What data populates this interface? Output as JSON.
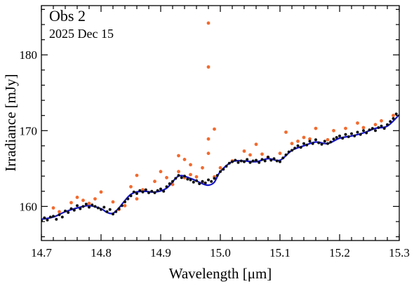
{
  "chart_data": {
    "type": "scatter",
    "title": "Obs 2",
    "subtitle": "2025 Dec 15",
    "xlabel": "Wavelength [μm]",
    "ylabel": "Irradiance [mJy]",
    "xlim": [
      14.7,
      15.3
    ],
    "ylim": [
      155.5,
      186.5
    ],
    "x_ticks": [
      14.7,
      14.8,
      14.9,
      15.0,
      15.1,
      15.2,
      15.3
    ],
    "x_tick_labels": [
      "14.7",
      "14.8",
      "14.9",
      "15.0",
      "15.1",
      "15.2",
      "15.3"
    ],
    "y_ticks": [
      160,
      170,
      180
    ],
    "y_tick_labels": [
      "160",
      "170",
      "180"
    ],
    "grid": false,
    "colors": {
      "raw": "#f26a2e",
      "clean": "#111111",
      "model": "#1515c8"
    },
    "model_knots": {
      "x": [
        14.7,
        14.72,
        14.74,
        14.76,
        14.78,
        14.8,
        14.81,
        14.82,
        14.83,
        14.85,
        14.87,
        14.89,
        14.91,
        14.93,
        14.95,
        14.97,
        14.98,
        14.99,
        15.0,
        15.02,
        15.04,
        15.06,
        15.08,
        15.1,
        15.12,
        15.14,
        15.16,
        15.18,
        15.2,
        15.22,
        15.24,
        15.26,
        15.28,
        15.3
      ],
      "y": [
        158.3,
        158.6,
        159.3,
        159.8,
        160.1,
        159.7,
        159.2,
        159.1,
        159.8,
        161.6,
        162.0,
        161.9,
        162.4,
        164.0,
        163.7,
        163.0,
        162.8,
        163.2,
        164.6,
        165.9,
        166.0,
        165.9,
        166.3,
        166.1,
        167.4,
        168.0,
        168.5,
        168.3,
        169.0,
        169.3,
        169.7,
        170.3,
        170.6,
        172.1
      ]
    },
    "series": [
      {
        "role": "raw",
        "x": [
          14.72,
          14.73,
          14.75,
          14.76,
          14.77,
          14.78,
          14.79,
          14.8,
          14.82,
          14.83,
          14.84,
          14.85,
          14.86,
          14.86,
          14.87,
          14.89,
          14.9,
          14.91,
          14.92,
          14.93,
          14.93,
          14.94,
          14.94,
          14.95,
          14.95,
          14.96,
          14.97,
          14.97,
          14.98,
          14.98,
          14.98,
          14.98,
          14.99,
          14.99,
          15.0,
          15.02,
          15.04,
          15.05,
          15.06,
          15.07,
          15.08,
          15.1,
          15.11,
          15.12,
          15.13,
          15.14,
          15.15,
          15.16,
          15.18,
          15.19,
          15.21,
          15.23,
          15.24,
          15.26,
          15.27,
          15.29
        ],
        "y": [
          159.8,
          159.3,
          160.5,
          161.2,
          160.8,
          160.4,
          161.0,
          161.9,
          160.6,
          159.6,
          160.1,
          162.6,
          164.1,
          161.0,
          162.2,
          163.3,
          164.6,
          163.8,
          162.9,
          166.7,
          164.6,
          166.2,
          163.8,
          165.5,
          164.2,
          163.9,
          165.1,
          163.2,
          184.2,
          178.4,
          168.9,
          167.0,
          170.2,
          163.9,
          165.1,
          166.0,
          167.3,
          166.8,
          168.2,
          166.9,
          166.5,
          167.0,
          169.8,
          168.3,
          168.6,
          169.1,
          168.9,
          170.3,
          168.8,
          170.0,
          170.3,
          171.0,
          170.4,
          170.8,
          171.3,
          172.0
        ]
      },
      {
        "role": "clean",
        "x": [
          14.7,
          14.705,
          14.71,
          14.715,
          14.72,
          14.725,
          14.73,
          14.735,
          14.74,
          14.745,
          14.75,
          14.755,
          14.76,
          14.765,
          14.77,
          14.775,
          14.78,
          14.785,
          14.79,
          14.795,
          14.8,
          14.805,
          14.81,
          14.815,
          14.82,
          14.825,
          14.83,
          14.835,
          14.84,
          14.845,
          14.85,
          14.855,
          14.86,
          14.865,
          14.87,
          14.875,
          14.88,
          14.885,
          14.89,
          14.895,
          14.9,
          14.905,
          14.91,
          14.915,
          14.92,
          14.925,
          14.93,
          14.935,
          14.94,
          14.945,
          14.95,
          14.955,
          14.96,
          14.965,
          14.97,
          14.975,
          14.98,
          14.985,
          14.99,
          14.995,
          15.0,
          15.005,
          15.01,
          15.015,
          15.02,
          15.025,
          15.03,
          15.035,
          15.04,
          15.045,
          15.05,
          15.055,
          15.06,
          15.065,
          15.07,
          15.075,
          15.08,
          15.085,
          15.09,
          15.095,
          15.1,
          15.105,
          15.11,
          15.115,
          15.12,
          15.125,
          15.13,
          15.135,
          15.14,
          15.145,
          15.15,
          15.155,
          15.16,
          15.165,
          15.17,
          15.175,
          15.18,
          15.185,
          15.19,
          15.195,
          15.2,
          15.205,
          15.21,
          15.215,
          15.22,
          15.225,
          15.23,
          15.235,
          15.24,
          15.245,
          15.25,
          15.255,
          15.26,
          15.265,
          15.27,
          15.275,
          15.28,
          15.285,
          15.29,
          15.295
        ],
        "y": [
          158.1,
          158.5,
          158.2,
          158.6,
          158.7,
          158.3,
          158.9,
          158.6,
          159.4,
          159.2,
          159.7,
          159.5,
          160.1,
          159.7,
          160.0,
          160.3,
          159.9,
          160.2,
          160.0,
          159.8,
          159.6,
          159.9,
          159.3,
          159.6,
          159.0,
          159.3,
          159.7,
          160.1,
          160.6,
          161.0,
          161.4,
          161.9,
          161.7,
          162.1,
          161.9,
          162.2,
          161.8,
          162.0,
          161.8,
          162.1,
          162.3,
          162.0,
          162.6,
          163.0,
          163.3,
          163.7,
          164.1,
          163.8,
          164.0,
          163.6,
          163.5,
          163.2,
          163.4,
          163.0,
          163.3,
          163.1,
          163.5,
          163.3,
          163.7,
          164.1,
          164.6,
          164.9,
          165.3,
          165.7,
          165.9,
          166.1,
          165.8,
          166.0,
          165.9,
          166.2,
          165.8,
          166.0,
          166.1,
          165.8,
          166.2,
          166.0,
          166.5,
          166.1,
          166.3,
          166.0,
          165.9,
          166.4,
          166.8,
          167.2,
          167.4,
          167.7,
          168.0,
          167.8,
          168.3,
          168.1,
          168.6,
          168.3,
          168.8,
          168.4,
          168.2,
          168.6,
          168.3,
          168.5,
          168.9,
          169.1,
          169.3,
          169.0,
          169.5,
          169.2,
          169.6,
          169.3,
          169.8,
          169.5,
          170.0,
          169.7,
          170.1,
          170.3,
          170.0,
          170.4,
          170.6,
          170.3,
          170.8,
          171.2,
          171.6,
          172.2
        ]
      },
      {
        "role": "model"
      }
    ]
  }
}
